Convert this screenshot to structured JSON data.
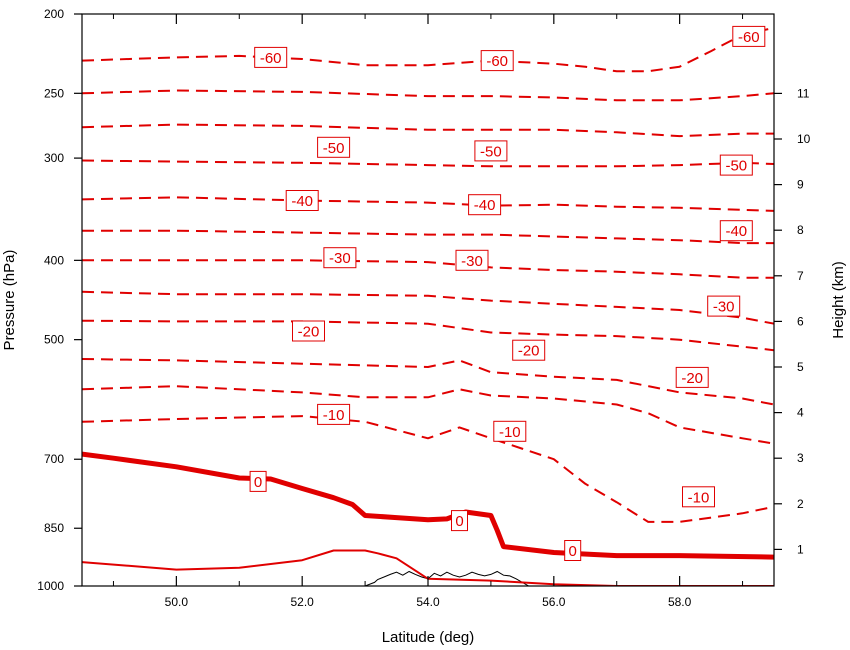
{
  "chart_data": {
    "type": "line",
    "xlabel": "Latitude (deg)",
    "ylabel_left": "Pressure (hPa)",
    "ylabel_right": "Height (km)",
    "xlim": [
      48.5,
      59.5
    ],
    "ylim_left": [
      1000,
      200
    ],
    "left_scale": "log",
    "xticks": [
      50.0,
      52.0,
      54.0,
      56.0,
      58.0
    ],
    "xtick_labels": [
      "50.0",
      "52.0",
      "54.0",
      "56.0",
      "58.0"
    ],
    "left_ticks": [
      200,
      250,
      300,
      400,
      500,
      700,
      850,
      1000
    ],
    "left_tick_labels": [
      "200",
      "250",
      "300",
      "400",
      "500",
      "700",
      "850",
      "1000"
    ],
    "right_ticks": [
      1,
      2,
      3,
      4,
      5,
      6,
      7,
      8,
      9,
      10,
      11
    ],
    "right_tick_labels": [
      "1",
      "2",
      "3",
      "4",
      "5",
      "6",
      "7",
      "8",
      "9",
      "10",
      "11"
    ],
    "grid": false,
    "contour_color": "#e00000",
    "terrain_color": "#000000",
    "series": [
      {
        "level": 5,
        "style": "solid-thin",
        "x": [
          48.5,
          50.0,
          51.0,
          52.0,
          52.5,
          53.0,
          53.2,
          53.5,
          54.0,
          55.0,
          56.0,
          57.0,
          58.0,
          59.5
        ],
        "p": [
          935,
          955,
          950,
          930,
          905,
          905,
          912,
          925,
          980,
          985,
          995,
          1000,
          1000,
          1000
        ]
      },
      {
        "level": 0,
        "style": "solid-thick",
        "x": [
          48.5,
          49.0,
          50.0,
          51.0,
          51.5,
          52.0,
          52.5,
          52.8,
          53.0,
          53.5,
          54.0,
          54.3,
          54.6,
          55.0,
          55.1,
          55.2,
          56.0,
          57.0,
          58.0,
          59.5
        ],
        "p": [
          690,
          698,
          715,
          738,
          740,
          760,
          780,
          795,
          820,
          825,
          830,
          828,
          812,
          820,
          855,
          895,
          910,
          918,
          918,
          922
        ]
      },
      {
        "level": -10,
        "style": "dashed",
        "x": [
          48.5,
          50.0,
          52.0,
          53.0,
          54.0,
          54.5,
          55.0,
          56.0,
          56.5,
          57.0,
          57.5,
          58.0,
          59.0,
          59.5
        ],
        "p": [
          630,
          625,
          620,
          630,
          660,
          640,
          660,
          700,
          750,
          790,
          835,
          835,
          815,
          800
        ]
      },
      {
        "level": -10,
        "style": "dashed",
        "x": [
          48.5,
          50.0,
          52.0,
          53.0,
          54.0,
          54.5,
          55.0,
          56.0,
          57.0,
          57.5,
          58.0,
          59.0,
          59.5
        ],
        "p": [
          575,
          570,
          580,
          588,
          588,
          575,
          585,
          590,
          600,
          615,
          640,
          660,
          670
        ]
      },
      {
        "level": -20,
        "style": "dashed",
        "x": [
          48.5,
          50.0,
          52.0,
          54.0,
          54.5,
          55.0,
          56.0,
          57.0,
          58.0,
          59.0,
          59.5
        ],
        "p": [
          528,
          530,
          535,
          540,
          530,
          548,
          555,
          560,
          580,
          590,
          600
        ]
      },
      {
        "level": -20,
        "style": "dashed",
        "x": [
          48.5,
          50.0,
          52.0,
          54.0,
          55.0,
          56.0,
          57.0,
          58.0,
          59.0,
          59.5
        ],
        "p": [
          474,
          475,
          475,
          478,
          490,
          493,
          495,
          500,
          510,
          515
        ]
      },
      {
        "level": -30,
        "style": "dashed",
        "x": [
          48.5,
          50.0,
          52.0,
          54.0,
          55.0,
          56.0,
          57.0,
          58.0,
          59.0,
          59.5
        ],
        "p": [
          437,
          440,
          440,
          442,
          448,
          452,
          456,
          460,
          470,
          478
        ]
      },
      {
        "level": -30,
        "style": "dashed",
        "x": [
          48.5,
          50.0,
          52.0,
          54.0,
          55.0,
          56.0,
          57.0,
          58.0,
          59.0,
          59.5
        ],
        "p": [
          400,
          400,
          400,
          402,
          408,
          411,
          413,
          416,
          420,
          420
        ]
      },
      {
        "level": -40,
        "style": "dashed",
        "x": [
          48.5,
          50.0,
          52.0,
          54.0,
          55.0,
          56.0,
          57.0,
          58.0,
          59.0,
          59.5
        ],
        "p": [
          368,
          368,
          370,
          372,
          372,
          374,
          376,
          378,
          381,
          381
        ]
      },
      {
        "level": -40,
        "style": "dashed",
        "x": [
          48.5,
          50.0,
          52.0,
          54.0,
          55.0,
          56.0,
          57.0,
          58.0,
          59.0,
          59.5
        ],
        "p": [
          337,
          335,
          338,
          340,
          343,
          342,
          344,
          345,
          347,
          348
        ]
      },
      {
        "level": -50,
        "style": "dashed",
        "x": [
          48.5,
          50.0,
          52.0,
          54.0,
          55.0,
          56.0,
          57.0,
          58.0,
          59.0,
          59.5
        ],
        "p": [
          302,
          303,
          304,
          306,
          307,
          307,
          307,
          306,
          304,
          305
        ]
      },
      {
        "level": -50,
        "style": "dashed",
        "x": [
          48.5,
          50.0,
          52.0,
          54.0,
          55.0,
          56.0,
          57.0,
          58.0,
          59.0,
          59.5
        ],
        "p": [
          275,
          273,
          274,
          277,
          277,
          277,
          279,
          282,
          280,
          280
        ]
      },
      {
        "level": -60,
        "style": "dashed",
        "x": [
          48.5,
          50.0,
          52.0,
          54.0,
          55.0,
          56.0,
          57.0,
          58.0,
          59.0,
          59.5
        ],
        "p": [
          250,
          248,
          249,
          252,
          252,
          253,
          255,
          255,
          252,
          250
        ]
      },
      {
        "level": -60,
        "style": "dashed",
        "x": [
          48.5,
          50.0,
          51.0,
          52.0,
          53.0,
          54.0,
          55.0,
          56.0,
          56.5,
          57.0,
          57.5,
          58.0,
          58.5,
          59.0,
          59.5
        ],
        "p": [
          228,
          226,
          225,
          227,
          231,
          231,
          228,
          230,
          232,
          235,
          235,
          232,
          222,
          212,
          208
        ]
      }
    ],
    "labels": [
      {
        "text": "-60",
        "x": 51.5,
        "p": 226
      },
      {
        "text": "-60",
        "x": 55.1,
        "p": 228
      },
      {
        "text": "-60",
        "x": 59.1,
        "p": 213
      },
      {
        "text": "-50",
        "x": 52.5,
        "p": 291
      },
      {
        "text": "-50",
        "x": 55.0,
        "p": 294
      },
      {
        "text": "-50",
        "x": 58.9,
        "p": 306
      },
      {
        "text": "-40",
        "x": 52.0,
        "p": 338
      },
      {
        "text": "-40",
        "x": 54.9,
        "p": 342
      },
      {
        "text": "-40",
        "x": 58.9,
        "p": 368
      },
      {
        "text": "-30",
        "x": 52.6,
        "p": 397
      },
      {
        "text": "-30",
        "x": 54.7,
        "p": 400
      },
      {
        "text": "-30",
        "x": 58.7,
        "p": 455
      },
      {
        "text": "-20",
        "x": 52.1,
        "p": 488
      },
      {
        "text": "-20",
        "x": 55.6,
        "p": 515
      },
      {
        "text": "-20",
        "x": 58.2,
        "p": 556
      },
      {
        "text": "-10",
        "x": 52.5,
        "p": 617
      },
      {
        "text": "-10",
        "x": 55.3,
        "p": 647
      },
      {
        "text": "-10",
        "x": 58.3,
        "p": 778
      },
      {
        "text": "0",
        "x": 51.3,
        "p": 745
      },
      {
        "text": "0",
        "x": 54.5,
        "p": 832
      },
      {
        "text": "0",
        "x": 56.3,
        "p": 905
      }
    ],
    "terrain": {
      "x": [
        53.0,
        53.15,
        53.2,
        53.3,
        53.4,
        53.5,
        53.6,
        53.7,
        53.8,
        53.9,
        54.0,
        54.1,
        54.2,
        54.3,
        54.4,
        54.5,
        54.6,
        54.7,
        54.8,
        54.9,
        55.0,
        55.1,
        55.2,
        55.3,
        55.4,
        55.5,
        55.6
      ],
      "p": [
        1000,
        990,
        982,
        975,
        968,
        962,
        970,
        960,
        968,
        975,
        980,
        965,
        972,
        962,
        970,
        975,
        970,
        962,
        968,
        972,
        968,
        960,
        970,
        972,
        980,
        990,
        1000
      ]
    }
  }
}
